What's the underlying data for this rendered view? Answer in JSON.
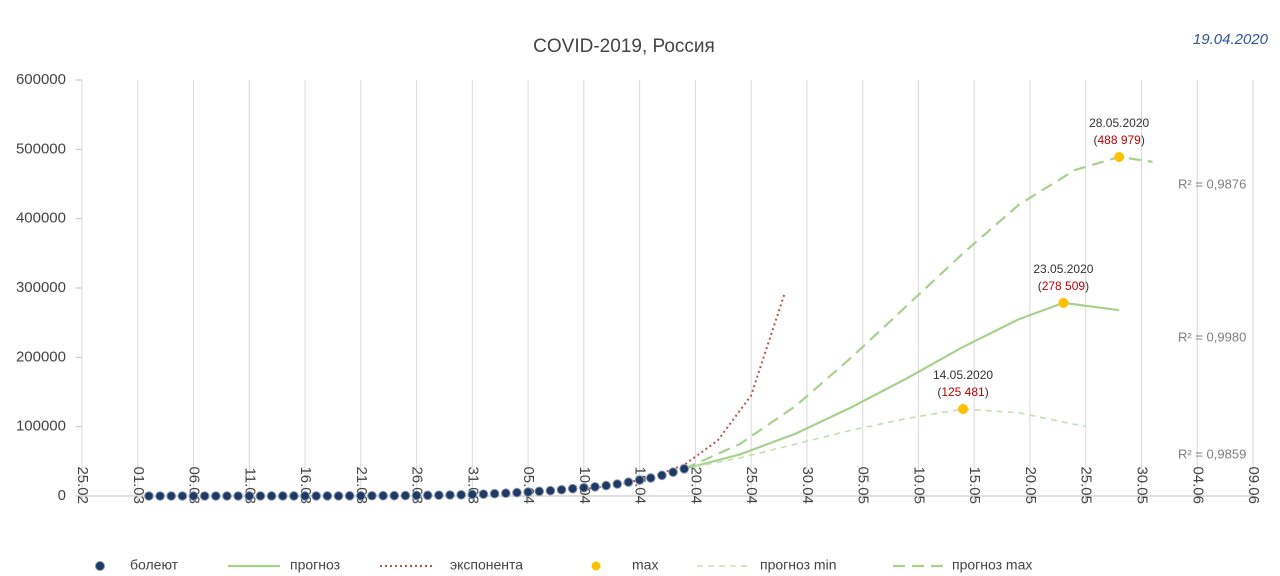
{
  "chart_data": {
    "type": "line",
    "title": "COVID-2019, Россия",
    "date": "19.04.2020",
    "xlim": [
      "25.02",
      "09.06"
    ],
    "xticks": [
      "25.02",
      "01.03",
      "06.03",
      "11.03",
      "16.03",
      "21.03",
      "26.03",
      "31.03",
      "05.04",
      "10.04",
      "15.04",
      "20.04",
      "25.04",
      "30.04",
      "05.05",
      "10.05",
      "15.05",
      "20.05",
      "25.05",
      "30.05",
      "04.06",
      "09.06"
    ],
    "ylim": [
      0,
      600000
    ],
    "yticks": [
      0,
      100000,
      200000,
      300000,
      400000,
      500000,
      600000
    ],
    "grid": "x",
    "legend": "bottom",
    "series": [
      {
        "name": "болеют",
        "type": "scatter",
        "color": "#1f3864",
        "x": [
          "02.03",
          "03.03",
          "04.03",
          "05.03",
          "06.03",
          "07.03",
          "08.03",
          "09.03",
          "10.03",
          "11.03",
          "12.03",
          "13.03",
          "14.03",
          "15.03",
          "16.03",
          "17.03",
          "18.03",
          "19.03",
          "20.03",
          "21.03",
          "22.03",
          "23.03",
          "24.03",
          "25.03",
          "26.03",
          "27.03",
          "28.03",
          "29.03",
          "30.03",
          "31.03",
          "01.04",
          "02.04",
          "03.04",
          "04.04",
          "05.04",
          "06.04",
          "07.04",
          "08.04",
          "09.04",
          "10.04",
          "11.04",
          "12.04",
          "13.04",
          "14.04",
          "15.04",
          "16.04",
          "17.04",
          "18.04",
          "19.04"
        ],
        "values": [
          3,
          3,
          3,
          4,
          10,
          12,
          14,
          14,
          17,
          25,
          31,
          42,
          50,
          58,
          83,
          104,
          133,
          178,
          235,
          290,
          350,
          410,
          480,
          630,
          800,
          1000,
          1200,
          1460,
          1700,
          2200,
          2650,
          3350,
          4000,
          4900,
          5700,
          6700,
          7700,
          9000,
          10600,
          11900,
          13200,
          15000,
          17300,
          20000,
          23000,
          26000,
          29800,
          34400,
          39200
        ]
      },
      {
        "name": "прогноз",
        "type": "line",
        "dash": "solid",
        "color": "#a9d18e",
        "x": [
          "19.04",
          "24.04",
          "29.04",
          "04.05",
          "09.05",
          "14.05",
          "19.05",
          "23.05",
          "28.05"
        ],
        "values": [
          39000,
          60000,
          90000,
          128000,
          170000,
          215000,
          255000,
          278509,
          268000
        ]
      },
      {
        "name": "экспонента",
        "type": "line",
        "dash": "dotted",
        "color": "#c0504d",
        "x": [
          "10.04",
          "13.04",
          "16.04",
          "19.04",
          "22.04",
          "25.04",
          "28.04"
        ],
        "values": [
          10000,
          16000,
          27000,
          45000,
          80000,
          145000,
          292000
        ]
      },
      {
        "name": "max",
        "type": "scatter",
        "color": "#ffc000",
        "x": [
          "14.05.2020",
          "23.05.2020",
          "28.05.2020"
        ],
        "values": [
          125481,
          278509,
          488979
        ],
        "value_labels": [
          "(125 481)",
          "(278 509)",
          "(488 979)"
        ]
      },
      {
        "name": "прогноз min",
        "type": "line",
        "dash": "dashed",
        "color": "#c5e0b4",
        "x": [
          "19.04",
          "24.04",
          "29.04",
          "04.05",
          "09.05",
          "14.05",
          "19.05",
          "25.05"
        ],
        "values": [
          39000,
          55000,
          75000,
          95000,
          112000,
          125481,
          120000,
          100000
        ]
      },
      {
        "name": "прогноз max",
        "type": "line",
        "dash": "longdash",
        "color": "#a9d18e",
        "x": [
          "19.04",
          "24.04",
          "29.04",
          "04.05",
          "09.05",
          "14.05",
          "19.05",
          "24.05",
          "28.05",
          "31.05"
        ],
        "values": [
          39000,
          75000,
          130000,
          200000,
          275000,
          350000,
          420000,
          470000,
          488979,
          482000
        ]
      }
    ],
    "annotations": [
      "R² = 0,9876",
      "R² = 0,9980",
      "R² = 0,9859"
    ]
  }
}
